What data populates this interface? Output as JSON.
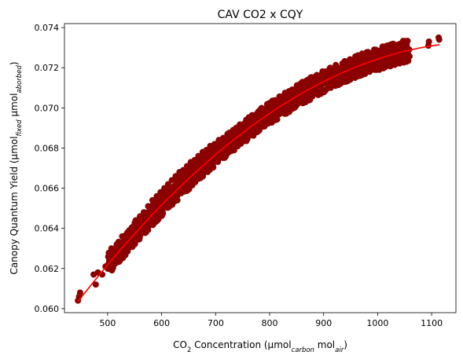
{
  "chart_data": {
    "type": "scatter",
    "title": "CAV CO2 x CQY",
    "xlabel": {
      "parts": [
        {
          "text": "CO",
          "style": "normal"
        },
        {
          "text": "2",
          "style": "sub"
        },
        {
          "text": " Concentration (µmol",
          "style": "normal"
        },
        {
          "text": "carbon",
          "style": "sub-italic"
        },
        {
          "text": " mol",
          "style": "normal"
        },
        {
          "text": "air",
          "style": "sub-italic"
        },
        {
          "text": ")",
          "style": "normal"
        }
      ]
    },
    "ylabel": {
      "parts": [
        {
          "text": "Canopy Quantum Yield (µmol",
          "style": "normal"
        },
        {
          "text": "fixed",
          "style": "sub-italic"
        },
        {
          "text": " µmol",
          "style": "normal"
        },
        {
          "text": "aborbed",
          "style": "sub-italic"
        },
        {
          "text": ")",
          "style": "normal"
        }
      ]
    },
    "xlim": [
      420,
      1145
    ],
    "ylim": [
      0.0598,
      0.0742
    ],
    "xticks": [
      500,
      600,
      700,
      800,
      900,
      1000,
      1100
    ],
    "xtick_labels": [
      "500",
      "600",
      "700",
      "800",
      "900",
      "1000",
      "1100"
    ],
    "yticks": [
      0.06,
      0.062,
      0.064,
      0.066,
      0.068,
      0.07,
      0.072,
      0.074
    ],
    "ytick_labels": [
      "0.060",
      "0.062",
      "0.064",
      "0.066",
      "0.068",
      "0.070",
      "0.072",
      "0.074"
    ],
    "grid": false,
    "series": [
      {
        "kind": "scatter",
        "color": "#8b0000",
        "points": [
          [
            445,
            0.0604
          ],
          [
            447,
            0.0606
          ],
          [
            449,
            0.0608
          ],
          [
            474,
            0.0617
          ],
          [
            478,
            0.0612
          ],
          [
            482,
            0.0618
          ],
          [
            490,
            0.0617
          ],
          [
            496,
            0.0621
          ],
          [
            503,
            0.0625
          ],
          [
            507,
            0.063
          ],
          [
            512,
            0.0629
          ],
          [
            518,
            0.0631
          ],
          [
            523,
            0.0633
          ],
          [
            527,
            0.0636
          ],
          [
            531,
            0.0632
          ],
          [
            535,
            0.0637
          ],
          [
            540,
            0.0639
          ],
          [
            543,
            0.0635
          ],
          [
            548,
            0.0641
          ],
          [
            552,
            0.0644
          ],
          [
            556,
            0.064
          ],
          [
            560,
            0.0646
          ],
          [
            563,
            0.0642
          ],
          [
            567,
            0.0648
          ],
          [
            571,
            0.0645
          ],
          [
            575,
            0.0651
          ],
          [
            579,
            0.0648
          ],
          [
            583,
            0.0654
          ],
          [
            587,
            0.065
          ],
          [
            591,
            0.0656
          ],
          [
            595,
            0.0653
          ],
          [
            598,
            0.0658
          ],
          [
            602,
            0.0655
          ],
          [
            605,
            0.066
          ],
          [
            609,
            0.0657
          ],
          [
            612,
            0.0662
          ],
          [
            616,
            0.0659
          ],
          [
            619,
            0.0664
          ],
          [
            623,
            0.0661
          ],
          [
            626,
            0.0666
          ],
          [
            630,
            0.0663
          ],
          [
            633,
            0.0668
          ],
          [
            637,
            0.0664
          ],
          [
            640,
            0.0669
          ],
          [
            644,
            0.0666
          ],
          [
            647,
            0.0671
          ],
          [
            651,
            0.0668
          ],
          [
            654,
            0.0673
          ],
          [
            658,
            0.0669
          ],
          [
            661,
            0.0674
          ],
          [
            665,
            0.0671
          ],
          [
            668,
            0.0676
          ],
          [
            672,
            0.0673
          ],
          [
            676,
            0.0678
          ],
          [
            679,
            0.0674
          ],
          [
            683,
            0.0679
          ],
          [
            687,
            0.0676
          ],
          [
            690,
            0.0681
          ],
          [
            694,
            0.0677
          ],
          [
            698,
            0.0682
          ],
          [
            702,
            0.0679
          ],
          [
            706,
            0.0684
          ],
          [
            710,
            0.068
          ],
          [
            714,
            0.0685
          ],
          [
            718,
            0.0682
          ],
          [
            722,
            0.0687
          ],
          [
            726,
            0.0683
          ],
          [
            730,
            0.0688
          ],
          [
            734,
            0.0685
          ],
          [
            738,
            0.069
          ],
          [
            742,
            0.0686
          ],
          [
            746,
            0.0691
          ],
          [
            750,
            0.0688
          ],
          [
            754,
            0.0692
          ],
          [
            758,
            0.0689
          ],
          [
            762,
            0.0694
          ],
          [
            766,
            0.069
          ],
          [
            770,
            0.0695
          ],
          [
            774,
            0.0692
          ],
          [
            778,
            0.0696
          ],
          [
            782,
            0.0693
          ],
          [
            786,
            0.0698
          ],
          [
            790,
            0.0694
          ],
          [
            794,
            0.0699
          ],
          [
            798,
            0.0696
          ],
          [
            802,
            0.07
          ],
          [
            806,
            0.0697
          ],
          [
            810,
            0.0701
          ],
          [
            815,
            0.0698
          ],
          [
            819,
            0.0703
          ],
          [
            823,
            0.0699
          ],
          [
            828,
            0.0704
          ],
          [
            832,
            0.07
          ],
          [
            836,
            0.0705
          ],
          [
            841,
            0.0702
          ],
          [
            845,
            0.0706
          ],
          [
            850,
            0.0703
          ],
          [
            854,
            0.0707
          ],
          [
            859,
            0.0704
          ],
          [
            863,
            0.0708
          ],
          [
            868,
            0.0705
          ],
          [
            872,
            0.0709
          ],
          [
            877,
            0.0706
          ],
          [
            881,
            0.071
          ],
          [
            886,
            0.0707
          ],
          [
            890,
            0.0711
          ],
          [
            895,
            0.0708
          ],
          [
            899,
            0.0712
          ],
          [
            904,
            0.0709
          ],
          [
            908,
            0.0713
          ],
          [
            913,
            0.071
          ],
          [
            917,
            0.0714
          ],
          [
            922,
            0.0711
          ],
          [
            926,
            0.0715
          ],
          [
            931,
            0.0712
          ],
          [
            935,
            0.0716
          ],
          [
            940,
            0.0713
          ],
          [
            944,
            0.0717
          ],
          [
            949,
            0.0714
          ],
          [
            953,
            0.0718
          ],
          [
            958,
            0.0715
          ],
          [
            962,
            0.0719
          ],
          [
            967,
            0.0716
          ],
          [
            971,
            0.0719
          ],
          [
            976,
            0.0717
          ],
          [
            980,
            0.072
          ],
          [
            985,
            0.0718
          ],
          [
            990,
            0.0721
          ],
          [
            994,
            0.0719
          ],
          [
            999,
            0.0722
          ],
          [
            1003,
            0.0719
          ],
          [
            1008,
            0.0723
          ],
          [
            1012,
            0.072
          ],
          [
            1017,
            0.0724
          ],
          [
            1021,
            0.0721
          ],
          [
            1026,
            0.0725
          ],
          [
            1031,
            0.0723
          ],
          [
            1036,
            0.0727
          ],
          [
            1042,
            0.0729
          ],
          [
            1048,
            0.0729
          ],
          [
            1052,
            0.0727
          ],
          [
            1054,
            0.0729
          ],
          [
            1094,
            0.0731
          ],
          [
            1095,
            0.0733
          ],
          [
            1113,
            0.0735
          ],
          [
            1114,
            0.0734
          ]
        ]
      },
      {
        "kind": "line",
        "color": "#ff0000",
        "x_range": [
          445,
          1115
        ],
        "fit": "quadratic",
        "points": [
          [
            445,
            0.06035
          ],
          [
            780,
            0.06935
          ],
          [
            1115,
            0.07315
          ]
        ]
      }
    ]
  }
}
